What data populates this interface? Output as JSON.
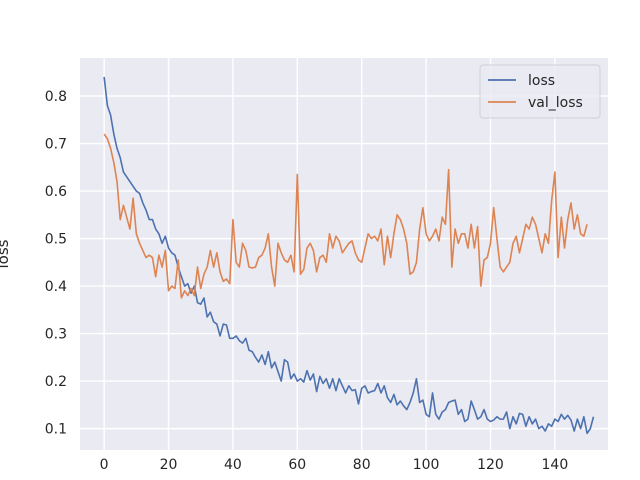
{
  "chart_data": {
    "type": "line",
    "title": "",
    "xlabel": "",
    "ylabel": "loss",
    "xlim": [
      -7.5,
      156.5
    ],
    "ylim": [
      0.055,
      0.88
    ],
    "xticks": [
      0,
      20,
      40,
      60,
      80,
      100,
      120,
      140
    ],
    "yticks": [
      0.1,
      0.2,
      0.3,
      0.4,
      0.5,
      0.6,
      0.7,
      0.8
    ],
    "grid": true,
    "legend_position": "top-right",
    "colors": {
      "background": "#eaeaf2",
      "grid": "#ffffff",
      "loss": "#4c72b0",
      "val_loss": "#dd8452"
    },
    "series": [
      {
        "name": "loss",
        "color": "#4c72b0",
        "values": [
          0.84,
          0.78,
          0.76,
          0.72,
          0.69,
          0.67,
          0.64,
          0.63,
          0.62,
          0.61,
          0.6,
          0.595,
          0.575,
          0.56,
          0.54,
          0.54,
          0.52,
          0.51,
          0.49,
          0.505,
          0.48,
          0.47,
          0.465,
          0.44,
          0.42,
          0.4,
          0.405,
          0.385,
          0.4,
          0.365,
          0.362,
          0.375,
          0.335,
          0.345,
          0.325,
          0.32,
          0.295,
          0.32,
          0.318,
          0.29,
          0.29,
          0.295,
          0.285,
          0.28,
          0.29,
          0.265,
          0.262,
          0.25,
          0.24,
          0.255,
          0.235,
          0.262,
          0.228,
          0.24,
          0.22,
          0.2,
          0.245,
          0.24,
          0.205,
          0.215,
          0.2,
          0.205,
          0.198,
          0.222,
          0.202,
          0.215,
          0.178,
          0.21,
          0.195,
          0.205,
          0.185,
          0.205,
          0.18,
          0.205,
          0.19,
          0.175,
          0.19,
          0.18,
          0.182,
          0.152,
          0.185,
          0.19,
          0.175,
          0.178,
          0.18,
          0.195,
          0.175,
          0.19,
          0.165,
          0.155,
          0.172,
          0.15,
          0.158,
          0.148,
          0.14,
          0.155,
          0.175,
          0.205,
          0.155,
          0.16,
          0.13,
          0.125,
          0.175,
          0.13,
          0.12,
          0.135,
          0.14,
          0.155,
          0.158,
          0.16,
          0.13,
          0.14,
          0.115,
          0.12,
          0.158,
          0.14,
          0.12,
          0.125,
          0.14,
          0.12,
          0.115,
          0.118,
          0.125,
          0.12,
          0.12,
          0.135,
          0.1,
          0.125,
          0.11,
          0.132,
          0.13,
          0.105,
          0.125,
          0.11,
          0.12,
          0.1,
          0.105,
          0.095,
          0.11,
          0.105,
          0.12,
          0.115,
          0.13,
          0.12,
          0.128,
          0.118,
          0.095,
          0.12,
          0.1,
          0.125,
          0.09,
          0.1,
          0.125
        ]
      },
      {
        "name": "val_loss",
        "color": "#dd8452",
        "values": [
          0.72,
          0.71,
          0.69,
          0.66,
          0.62,
          0.54,
          0.57,
          0.545,
          0.52,
          0.585,
          0.51,
          0.49,
          0.475,
          0.46,
          0.465,
          0.46,
          0.42,
          0.465,
          0.44,
          0.475,
          0.39,
          0.4,
          0.395,
          0.455,
          0.375,
          0.39,
          0.38,
          0.395,
          0.38,
          0.44,
          0.395,
          0.425,
          0.44,
          0.475,
          0.44,
          0.47,
          0.43,
          0.41,
          0.415,
          0.405,
          0.54,
          0.45,
          0.44,
          0.49,
          0.475,
          0.44,
          0.438,
          0.44,
          0.46,
          0.465,
          0.48,
          0.51,
          0.44,
          0.4,
          0.49,
          0.47,
          0.455,
          0.45,
          0.465,
          0.43,
          0.635,
          0.425,
          0.435,
          0.48,
          0.49,
          0.475,
          0.43,
          0.46,
          0.465,
          0.45,
          0.51,
          0.48,
          0.505,
          0.495,
          0.47,
          0.48,
          0.49,
          0.495,
          0.47,
          0.455,
          0.45,
          0.48,
          0.51,
          0.5,
          0.505,
          0.495,
          0.52,
          0.445,
          0.505,
          0.46,
          0.51,
          0.55,
          0.54,
          0.52,
          0.49,
          0.425,
          0.43,
          0.45,
          0.52,
          0.565,
          0.51,
          0.495,
          0.505,
          0.52,
          0.495,
          0.545,
          0.53,
          0.645,
          0.44,
          0.52,
          0.49,
          0.51,
          0.51,
          0.48,
          0.53,
          0.48,
          0.525,
          0.4,
          0.455,
          0.46,
          0.49,
          0.565,
          0.5,
          0.44,
          0.43,
          0.44,
          0.45,
          0.49,
          0.505,
          0.47,
          0.5,
          0.53,
          0.52,
          0.545,
          0.53,
          0.5,
          0.47,
          0.51,
          0.49,
          0.58,
          0.64,
          0.46,
          0.545,
          0.48,
          0.54,
          0.575,
          0.52,
          0.55,
          0.51,
          0.505,
          0.53
        ]
      }
    ]
  }
}
